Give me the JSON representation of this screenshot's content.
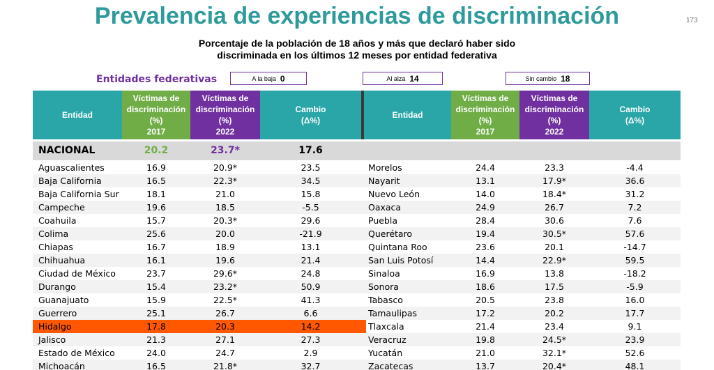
{
  "title": "Prevalencia de experiencias de discriminación",
  "page_number": "173",
  "subtitle": {
    "line1": "Porcentaje de la población de 18 años y más que declaró haber sido",
    "line2": "discriminada en los últimos 12 meses por entidad federativa"
  },
  "summary": {
    "label": "Entidades federativas",
    "down": {
      "label": "A la baja",
      "value": "0"
    },
    "up": {
      "label": "Al alza",
      "value": "14"
    },
    "nochange": {
      "label": "Sin cambio",
      "value": "18"
    }
  },
  "headers": {
    "entidad": "Entidad",
    "v2017": [
      "Víctimas de",
      "discriminación",
      "(%)",
      "2017"
    ],
    "v2022": [
      "Víctimas de",
      "discriminación",
      "(%)",
      "2022"
    ],
    "cambio": [
      "Cambio",
      "(Δ%)"
    ]
  },
  "colors": {
    "teal": "#2aa6a8",
    "green": "#70ad47",
    "purple": "#7030a0",
    "highlight": "#ff5800"
  },
  "national": {
    "name": "NACIONAL",
    "v2017": "20.2",
    "v2022": "23.7*",
    "change": "17.6"
  },
  "left_rows": [
    {
      "name": "Aguascalientes",
      "v2017": "16.9",
      "v2022": "20.9*",
      "change": "23.5"
    },
    {
      "name": "Baja California",
      "v2017": "16.5",
      "v2022": "22.3*",
      "change": "34.5"
    },
    {
      "name": "Baja California Sur",
      "v2017": "18.1",
      "v2022": "21.0",
      "change": "15.8"
    },
    {
      "name": "Campeche",
      "v2017": "19.6",
      "v2022": "18.5",
      "change": "-5.5"
    },
    {
      "name": "Coahuila",
      "v2017": "15.7",
      "v2022": "20.3*",
      "change": "29.6"
    },
    {
      "name": "Colima",
      "v2017": "25.6",
      "v2022": "20.0",
      "change": "-21.9"
    },
    {
      "name": "Chiapas",
      "v2017": "16.7",
      "v2022": "18.9",
      "change": "13.1"
    },
    {
      "name": "Chihuahua",
      "v2017": "16.1",
      "v2022": "19.6",
      "change": "21.4"
    },
    {
      "name": "Ciudad de México",
      "v2017": "23.7",
      "v2022": "29.6*",
      "change": "24.8"
    },
    {
      "name": "Durango",
      "v2017": "15.4",
      "v2022": "23.2*",
      "change": "50.9"
    },
    {
      "name": "Guanajuato",
      "v2017": "15.9",
      "v2022": "22.5*",
      "change": "41.3"
    },
    {
      "name": "Guerrero",
      "v2017": "25.1",
      "v2022": "26.7",
      "change": "6.6"
    },
    {
      "name": "Hidalgo",
      "v2017": "17.8",
      "v2022": "20.3",
      "change": "14.2"
    },
    {
      "name": "Jalisco",
      "v2017": "21.3",
      "v2022": "27.1",
      "change": "27.3"
    },
    {
      "name": "Estado de México",
      "v2017": "24.0",
      "v2022": "24.7",
      "change": "2.9"
    },
    {
      "name": "Michoacán",
      "v2017": "16.5",
      "v2022": "21.8*",
      "change": "32.7"
    }
  ],
  "right_rows": [
    {
      "name": "Morelos",
      "v2017": "24.4",
      "v2022": "23.3",
      "change": "-4.4"
    },
    {
      "name": "Nayarit",
      "v2017": "13.1",
      "v2022": "17.9*",
      "change": "36.6"
    },
    {
      "name": "Nuevo León",
      "v2017": "14.0",
      "v2022": "18.4*",
      "change": "31.2"
    },
    {
      "name": "Oaxaca",
      "v2017": "24.9",
      "v2022": "26.7",
      "change": "7.2"
    },
    {
      "name": "Puebla",
      "v2017": "28.4",
      "v2022": "30.6",
      "change": "7.6"
    },
    {
      "name": "Querétaro",
      "v2017": "19.4",
      "v2022": "30.5*",
      "change": "57.6"
    },
    {
      "name": "Quintana Roo",
      "v2017": "23.6",
      "v2022": "20.1",
      "change": "-14.7"
    },
    {
      "name": "San Luis Potosí",
      "v2017": "14.4",
      "v2022": "22.9*",
      "change": "59.5"
    },
    {
      "name": "Sinaloa",
      "v2017": "16.9",
      "v2022": "13.8",
      "change": "-18.2"
    },
    {
      "name": "Sonora",
      "v2017": "18.6",
      "v2022": "17.5",
      "change": "-5.9"
    },
    {
      "name": "Tabasco",
      "v2017": "20.5",
      "v2022": "23.8",
      "change": "16.0"
    },
    {
      "name": "Tamaulipas",
      "v2017": "17.2",
      "v2022": "20.2",
      "change": "17.7"
    },
    {
      "name": "Tlaxcala",
      "v2017": "21.4",
      "v2022": "23.4",
      "change": "9.1"
    },
    {
      "name": "Veracruz",
      "v2017": "19.8",
      "v2022": "24.5*",
      "change": "23.9"
    },
    {
      "name": "Yucatán",
      "v2017": "21.0",
      "v2022": "32.1*",
      "change": "52.6"
    },
    {
      "name": "Zacatecas",
      "v2017": "13.7",
      "v2022": "20.4*",
      "change": "48.1"
    }
  ]
}
